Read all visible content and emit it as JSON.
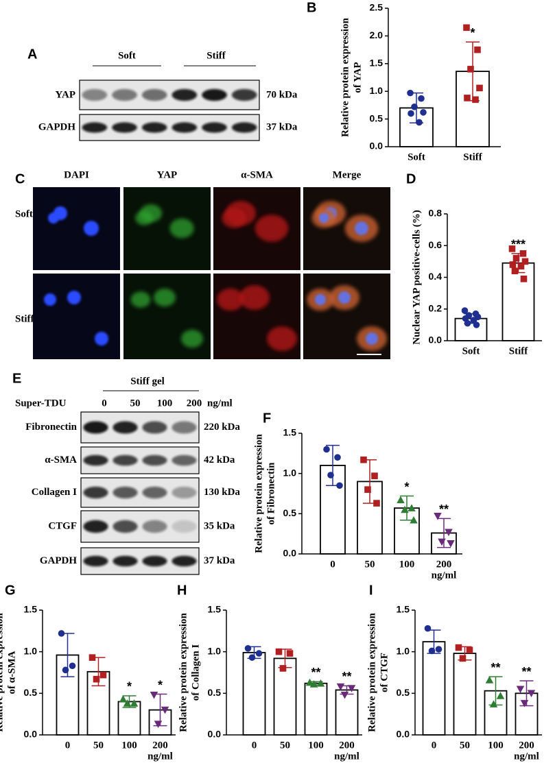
{
  "figure": {
    "A": {
      "label": "A",
      "groups": [
        "Soft",
        "Stiff"
      ],
      "rows": [
        {
          "name": "YAP",
          "size": "70 kDa"
        },
        {
          "name": "GAPDH",
          "size": "37 kDa"
        }
      ]
    },
    "C": {
      "label": "C",
      "columns": [
        "DAPI",
        "YAP",
        "α-SMA",
        "Merge"
      ],
      "rows": [
        "Soft",
        "Stiff"
      ]
    },
    "E": {
      "label": "E",
      "group": "Stiff gel",
      "treatment": "Super-TDU",
      "doses": [
        "0",
        "50",
        "100",
        "200"
      ],
      "unit": "ng/ml",
      "rows": [
        {
          "name": "Fibronectin",
          "size": "220 kDa"
        },
        {
          "name": "α-SMA",
          "size": "42 kDa"
        },
        {
          "name": "Collagen I",
          "size": "130 kDa"
        },
        {
          "name": "CTGF",
          "size": "35 kDa"
        },
        {
          "name": "GAPDH",
          "size": "37 kDa"
        }
      ]
    }
  },
  "chart_data": [
    {
      "type": "bar",
      "panel": "B",
      "ylabel": [
        "Relative protein expression",
        "of YAP"
      ],
      "categories": [
        "Soft",
        "Stiff"
      ],
      "values": [
        0.7,
        1.36
      ],
      "errors": [
        0.27,
        0.53
      ],
      "points": [
        [
          0.97,
          0.87,
          0.72,
          0.62,
          0.6,
          0.44
        ],
        [
          2.15,
          1.75,
          1.4,
          1.06,
          0.88,
          0.85
        ]
      ],
      "annotations": [
        null,
        "*"
      ],
      "colors": [
        "#1f2f8f",
        "#b02020"
      ],
      "markers": [
        "circle",
        "square"
      ],
      "ylim": [
        0,
        2.5
      ],
      "yticks": [
        {
          "value": 0,
          "label": "0.0"
        },
        0.5,
        {
          "value": 1,
          "label": "1.0"
        },
        1.5,
        {
          "value": 2,
          "label": "2.0"
        },
        2.5
      ]
    },
    {
      "type": "bar",
      "panel": "D",
      "ylabel": [
        "Nuclear YAP positive-cells (%)"
      ],
      "categories": [
        "Soft",
        "Stiff"
      ],
      "values": [
        0.14,
        0.49
      ],
      "errors": [
        0.03,
        0.06
      ],
      "points": [
        [
          0.19,
          0.17,
          0.16,
          0.15,
          0.14,
          0.13,
          0.11,
          0.1
        ],
        [
          0.58,
          0.55,
          0.52,
          0.5,
          0.48,
          0.47,
          0.44,
          0.39
        ]
      ],
      "annotations": [
        null,
        "***"
      ],
      "colors": [
        "#1f2f8f",
        "#b02020"
      ],
      "markers": [
        "circle",
        "square"
      ],
      "ylim": [
        0,
        0.8
      ],
      "yticks": [
        {
          "value": 0,
          "label": "0.0"
        },
        0.2,
        0.4,
        0.6,
        0.8
      ]
    },
    {
      "type": "bar",
      "panel": "F",
      "ylabel": [
        "Relative protein expression",
        "of Fibronectin"
      ],
      "categories": [
        "0",
        "50",
        "100",
        "200"
      ],
      "unit": "ng/ml",
      "values": [
        1.1,
        0.9,
        0.57,
        0.26
      ],
      "errors": [
        0.25,
        0.27,
        0.15,
        0.18
      ],
      "points": [
        [
          1.3,
          1.2,
          0.98,
          0.85
        ],
        [
          1.17,
          0.97,
          0.8,
          0.63
        ],
        [
          0.67,
          0.57,
          0.55,
          0.42
        ],
        [
          0.47,
          0.27,
          0.15,
          0.13
        ]
      ],
      "annotations": [
        null,
        null,
        "*",
        "**"
      ],
      "colors": [
        "#1f2f8f",
        "#b02020",
        "#2e7d32",
        "#6a2a7a"
      ],
      "markers": [
        "circle",
        "square",
        "triangle-up",
        "triangle-down"
      ],
      "ylim": [
        0,
        1.5
      ],
      "yticks": [
        {
          "value": 0,
          "label": "0.0"
        },
        0.5,
        {
          "value": 1,
          "label": "1.0"
        },
        1.5
      ]
    },
    {
      "type": "bar",
      "panel": "G",
      "ylabel": [
        "Relative protein expression",
        "of α-SMA"
      ],
      "categories": [
        "0",
        "50",
        "100",
        "200"
      ],
      "unit": "ng/ml",
      "values": [
        0.96,
        0.76,
        0.4,
        0.3
      ],
      "errors": [
        0.26,
        0.17,
        0.07,
        0.19
      ],
      "points": [
        [
          1.22,
          0.83,
          0.78
        ],
        [
          0.93,
          0.72,
          0.67
        ],
        [
          0.43,
          0.38,
          0.38
        ],
        [
          0.48,
          0.3,
          0.13
        ]
      ],
      "annotations": [
        null,
        null,
        "*",
        "*"
      ],
      "colors": [
        "#1f2f8f",
        "#b02020",
        "#2e7d32",
        "#6a2a7a"
      ],
      "markers": [
        "circle",
        "square",
        "triangle-up",
        "triangle-down"
      ],
      "ylim": [
        0,
        1.5
      ],
      "yticks": [
        {
          "value": 0,
          "label": "0.0"
        },
        0.5,
        {
          "value": 1,
          "label": "1.0"
        },
        1.5
      ]
    },
    {
      "type": "bar",
      "panel": "H",
      "ylabel": [
        "Relative protein expression",
        "of Collagen I"
      ],
      "categories": [
        "0",
        "50",
        "100",
        "200"
      ],
      "unit": "ng/ml",
      "values": [
        0.99,
        0.92,
        0.62,
        0.54
      ],
      "errors": [
        0.07,
        0.11,
        0.02,
        0.05
      ],
      "points": [
        [
          1.04,
          0.98,
          0.93
        ],
        [
          1.0,
          0.98,
          0.8
        ],
        [
          0.63,
          0.62,
          0.61
        ],
        [
          0.58,
          0.56,
          0.48
        ]
      ],
      "annotations": [
        null,
        null,
        "**",
        "**"
      ],
      "colors": [
        "#1f2f8f",
        "#b02020",
        "#2e7d32",
        "#6a2a7a"
      ],
      "markers": [
        "circle",
        "square",
        "triangle-up",
        "triangle-down"
      ],
      "ylim": [
        0,
        1.5
      ],
      "yticks": [
        {
          "value": 0,
          "label": "0.0"
        },
        0.5,
        {
          "value": 1,
          "label": "1.0"
        },
        1.5
      ]
    },
    {
      "type": "bar",
      "panel": "I",
      "ylabel": [
        "Relative protein expression",
        "of CTGF"
      ],
      "categories": [
        "0",
        "50",
        "100",
        "200"
      ],
      "unit": "ng/ml",
      "values": [
        1.12,
        0.98,
        0.53,
        0.5
      ],
      "errors": [
        0.14,
        0.08,
        0.17,
        0.15
      ],
      "points": [
        [
          1.28,
          1.03,
          1.01
        ],
        [
          1.05,
          1.02,
          0.92
        ],
        [
          0.66,
          0.47,
          0.37
        ],
        [
          0.55,
          0.5,
          0.38
        ]
      ],
      "annotations": [
        null,
        null,
        "**",
        "**"
      ],
      "colors": [
        "#1f2f8f",
        "#b02020",
        "#2e7d32",
        "#6a2a7a"
      ],
      "markers": [
        "circle",
        "square",
        "triangle-up",
        "triangle-down"
      ],
      "ylim": [
        0,
        1.5
      ],
      "yticks": [
        {
          "value": 0,
          "label": "0.0"
        },
        0.5,
        {
          "value": 1,
          "label": "1.0"
        },
        1.5
      ]
    }
  ]
}
